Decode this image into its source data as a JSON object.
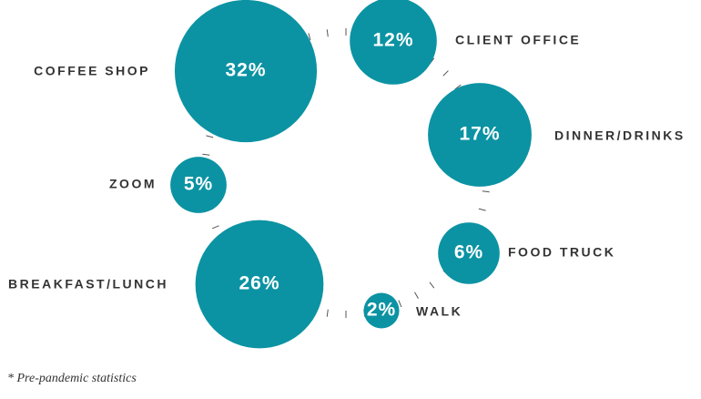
{
  "chart_data": {
    "type": "bubble",
    "categories": [
      "CLIENT OFFICE",
      "DINNER/DRINKS",
      "FOOD TRUCK",
      "WALK",
      "BREAKFAST/LUNCH",
      "ZOOM",
      "COFFEE SHOP"
    ],
    "values": [
      12,
      17,
      6,
      2,
      26,
      5,
      32
    ],
    "value_labels": [
      "12%",
      "17%",
      "6%",
      "2%",
      "26%",
      "5%",
      "32%"
    ],
    "color": "#0b93a3",
    "note": "* Pre-pandemic statistics"
  }
}
